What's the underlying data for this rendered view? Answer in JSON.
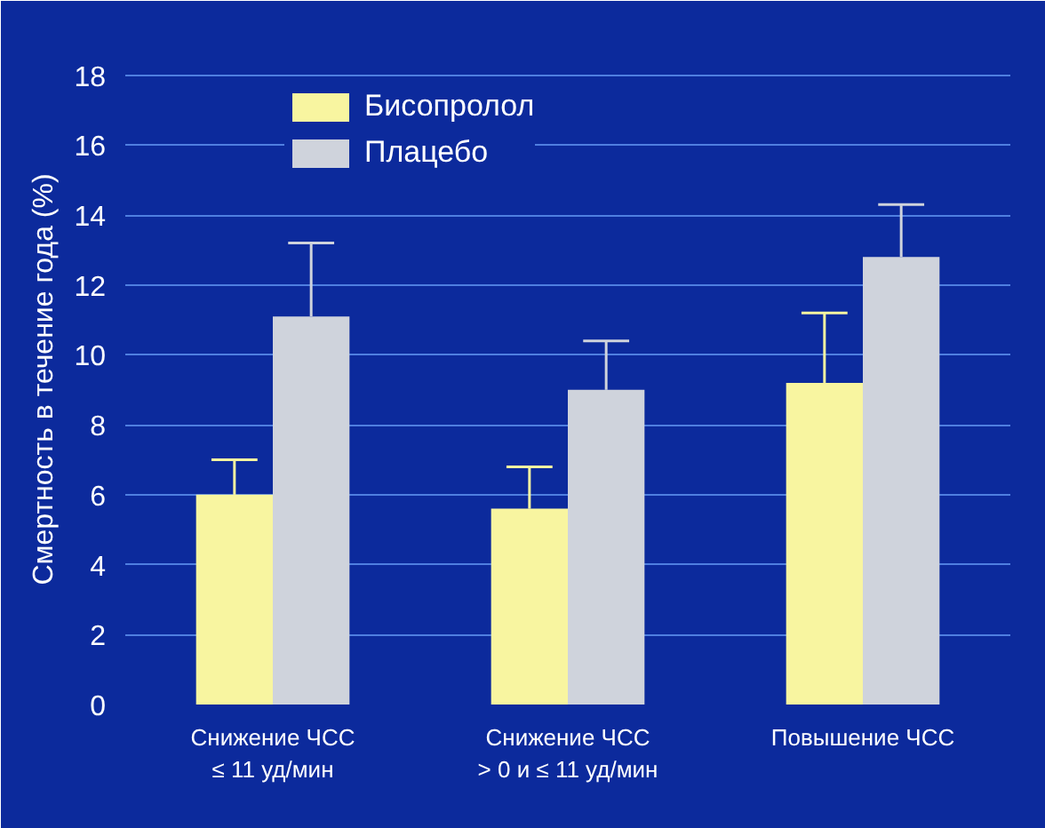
{
  "chart_data": {
    "type": "bar",
    "ylabel": "Смертность в течение года (%)",
    "categories": [
      "Снижение ЧСС\n≤ 11 уд/мин",
      "Снижение ЧСС\n> 0 и ≤ 11 уд/мин",
      "Повышение ЧСС"
    ],
    "series": [
      {
        "name": "Бисопролол",
        "color": "#f8f5a0",
        "values": [
          6.0,
          5.6,
          9.2
        ],
        "errors": [
          [
            6.0,
            7.0
          ],
          [
            5.6,
            6.8
          ],
          [
            9.2,
            11.2
          ]
        ]
      },
      {
        "name": "Плацебо",
        "color": "#cfd3dc",
        "values": [
          11.1,
          9.0,
          12.8
        ],
        "errors": [
          [
            11.1,
            13.2
          ],
          [
            9.0,
            10.4
          ],
          [
            12.8,
            14.3
          ]
        ]
      }
    ],
    "ylim": [
      0,
      18.6
    ],
    "yticks": [
      0,
      2,
      4,
      6,
      8,
      10,
      12,
      14,
      16,
      18
    ],
    "grid": "y",
    "legend": "top left"
  }
}
